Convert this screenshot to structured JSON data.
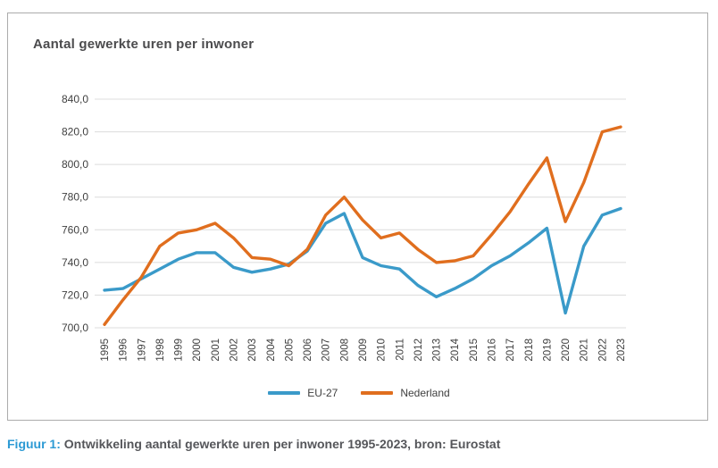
{
  "panel": {
    "title": "Aantal gewerkte uren per inwoner"
  },
  "caption": {
    "prefix": "Figuur 1:",
    "text": " Ontwikkeling aantal gewerkte uren per inwoner 1995-2023, bron: Eurostat"
  },
  "legend": [
    {
      "label": "EU-27",
      "series": "eu27"
    },
    {
      "label": "Nederland",
      "series": "nederland"
    }
  ],
  "colors": {
    "eu27": "#3a9ac9",
    "nederland": "#e06e1e",
    "grid": "#dcdcdc",
    "axis_text": "#404040",
    "panel_border": "#acacac",
    "title_text": "#4b4b4d",
    "caption_accent": "#2c9ad4",
    "caption_text": "#55565a"
  },
  "chart_data": {
    "type": "line",
    "title": "Aantal gewerkte uren per inwoner",
    "xlabel": "",
    "ylabel": "",
    "x": [
      1995,
      1996,
      1997,
      1998,
      1999,
      2000,
      2001,
      2002,
      2003,
      2004,
      2005,
      2006,
      2007,
      2008,
      2009,
      2010,
      2011,
      2012,
      2013,
      2014,
      2015,
      2016,
      2017,
      2018,
      2019,
      2020,
      2021,
      2022,
      2023
    ],
    "series": [
      {
        "name": "EU-27",
        "color_key": "eu27",
        "values": [
          723,
          724,
          730,
          736,
          742,
          746,
          746,
          737,
          734,
          736,
          739,
          747,
          764,
          770,
          743,
          738,
          736,
          726,
          719,
          724,
          730,
          738,
          744,
          752,
          761,
          709,
          750,
          769,
          773
        ]
      },
      {
        "name": "Nederland",
        "color_key": "nederland",
        "values": [
          702,
          717,
          731,
          750,
          758,
          760,
          764,
          755,
          743,
          742,
          738,
          748,
          769,
          780,
          766,
          755,
          758,
          748,
          740,
          741,
          744,
          757,
          771,
          788,
          804,
          765,
          789,
          820,
          823
        ]
      }
    ],
    "ylim": [
      700,
      840
    ],
    "ytick_step": 20,
    "ytick_decimal": "comma",
    "grid": true,
    "legend_position": "bottom"
  }
}
